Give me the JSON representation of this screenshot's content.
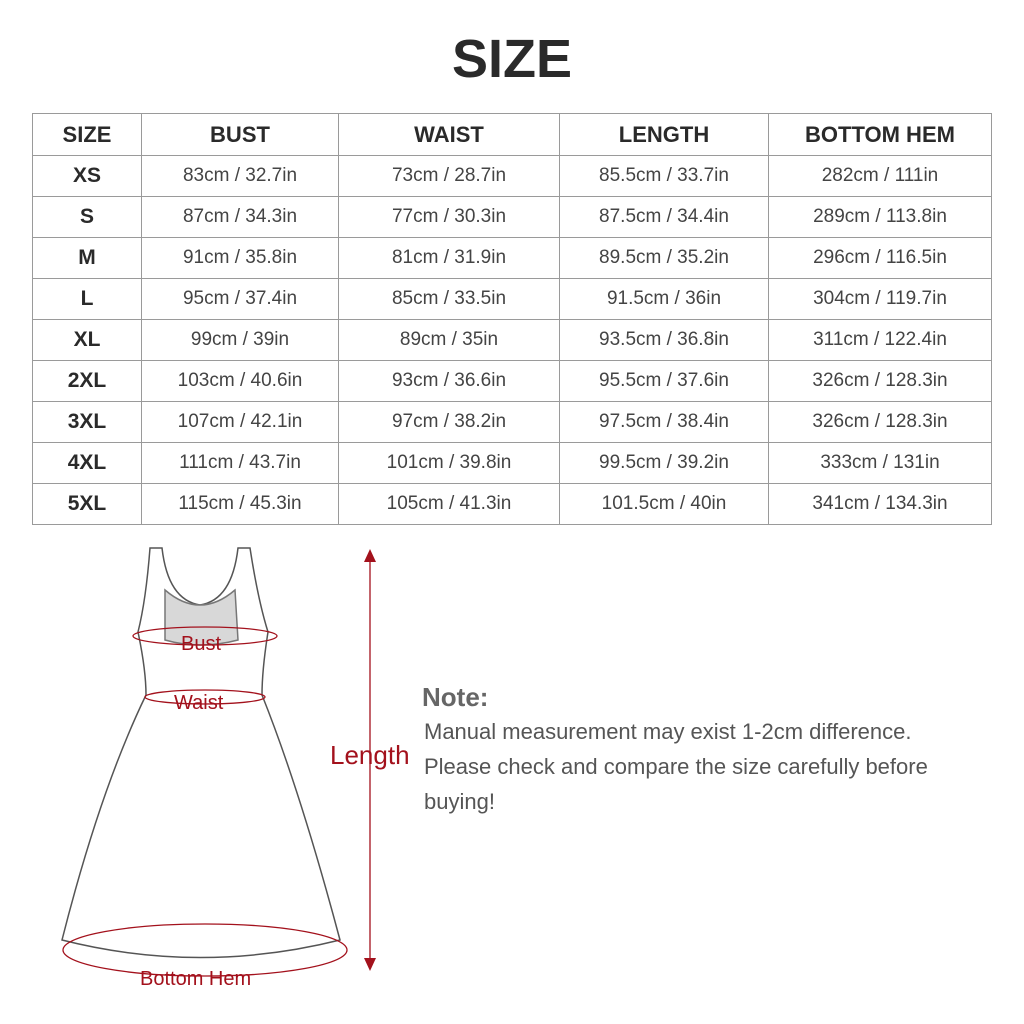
{
  "title": "SIZE",
  "table": {
    "headers": [
      "SIZE",
      "BUST",
      "WAIST",
      "LENGTH",
      "BOTTOM HEM"
    ],
    "rows": [
      [
        "XS",
        "83cm / 32.7in",
        "73cm / 28.7in",
        "85.5cm / 33.7in",
        "282cm / 111in"
      ],
      [
        "S",
        "87cm / 34.3in",
        "77cm / 30.3in",
        "87.5cm / 34.4in",
        "289cm / 113.8in"
      ],
      [
        "M",
        "91cm / 35.8in",
        "81cm / 31.9in",
        "89.5cm / 35.2in",
        "296cm / 116.5in"
      ],
      [
        "L",
        "95cm / 37.4in",
        "85cm / 33.5in",
        "91.5cm / 36in",
        "304cm / 119.7in"
      ],
      [
        "XL",
        "99cm / 39in",
        "89cm / 35in",
        "93.5cm / 36.8in",
        "311cm / 122.4in"
      ],
      [
        "2XL",
        "103cm / 40.6in",
        "93cm / 36.6in",
        "95.5cm / 37.6in",
        "326cm / 128.3in"
      ],
      [
        "3XL",
        "107cm / 42.1in",
        "97cm / 38.2in",
        "97.5cm / 38.4in",
        "326cm / 128.3in"
      ],
      [
        "4XL",
        "111cm / 43.7in",
        "101cm / 39.8in",
        "99.5cm / 39.2in",
        "333cm / 131in"
      ],
      [
        "5XL",
        "115cm / 45.3in",
        "105cm / 41.3in",
        "101.5cm / 40in",
        "341cm / 134.3in"
      ]
    ]
  },
  "diagram": {
    "bust_label": "Bust",
    "waist_label": "Waist",
    "length_label": "Length",
    "hem_label": "Bottom Hem",
    "accent_color": "#a3111c"
  },
  "note": {
    "title": "Note:",
    "lines": [
      "Manual measurement may exist 1-2cm difference.",
      "Please check and compare the size carefully before buying!"
    ]
  }
}
